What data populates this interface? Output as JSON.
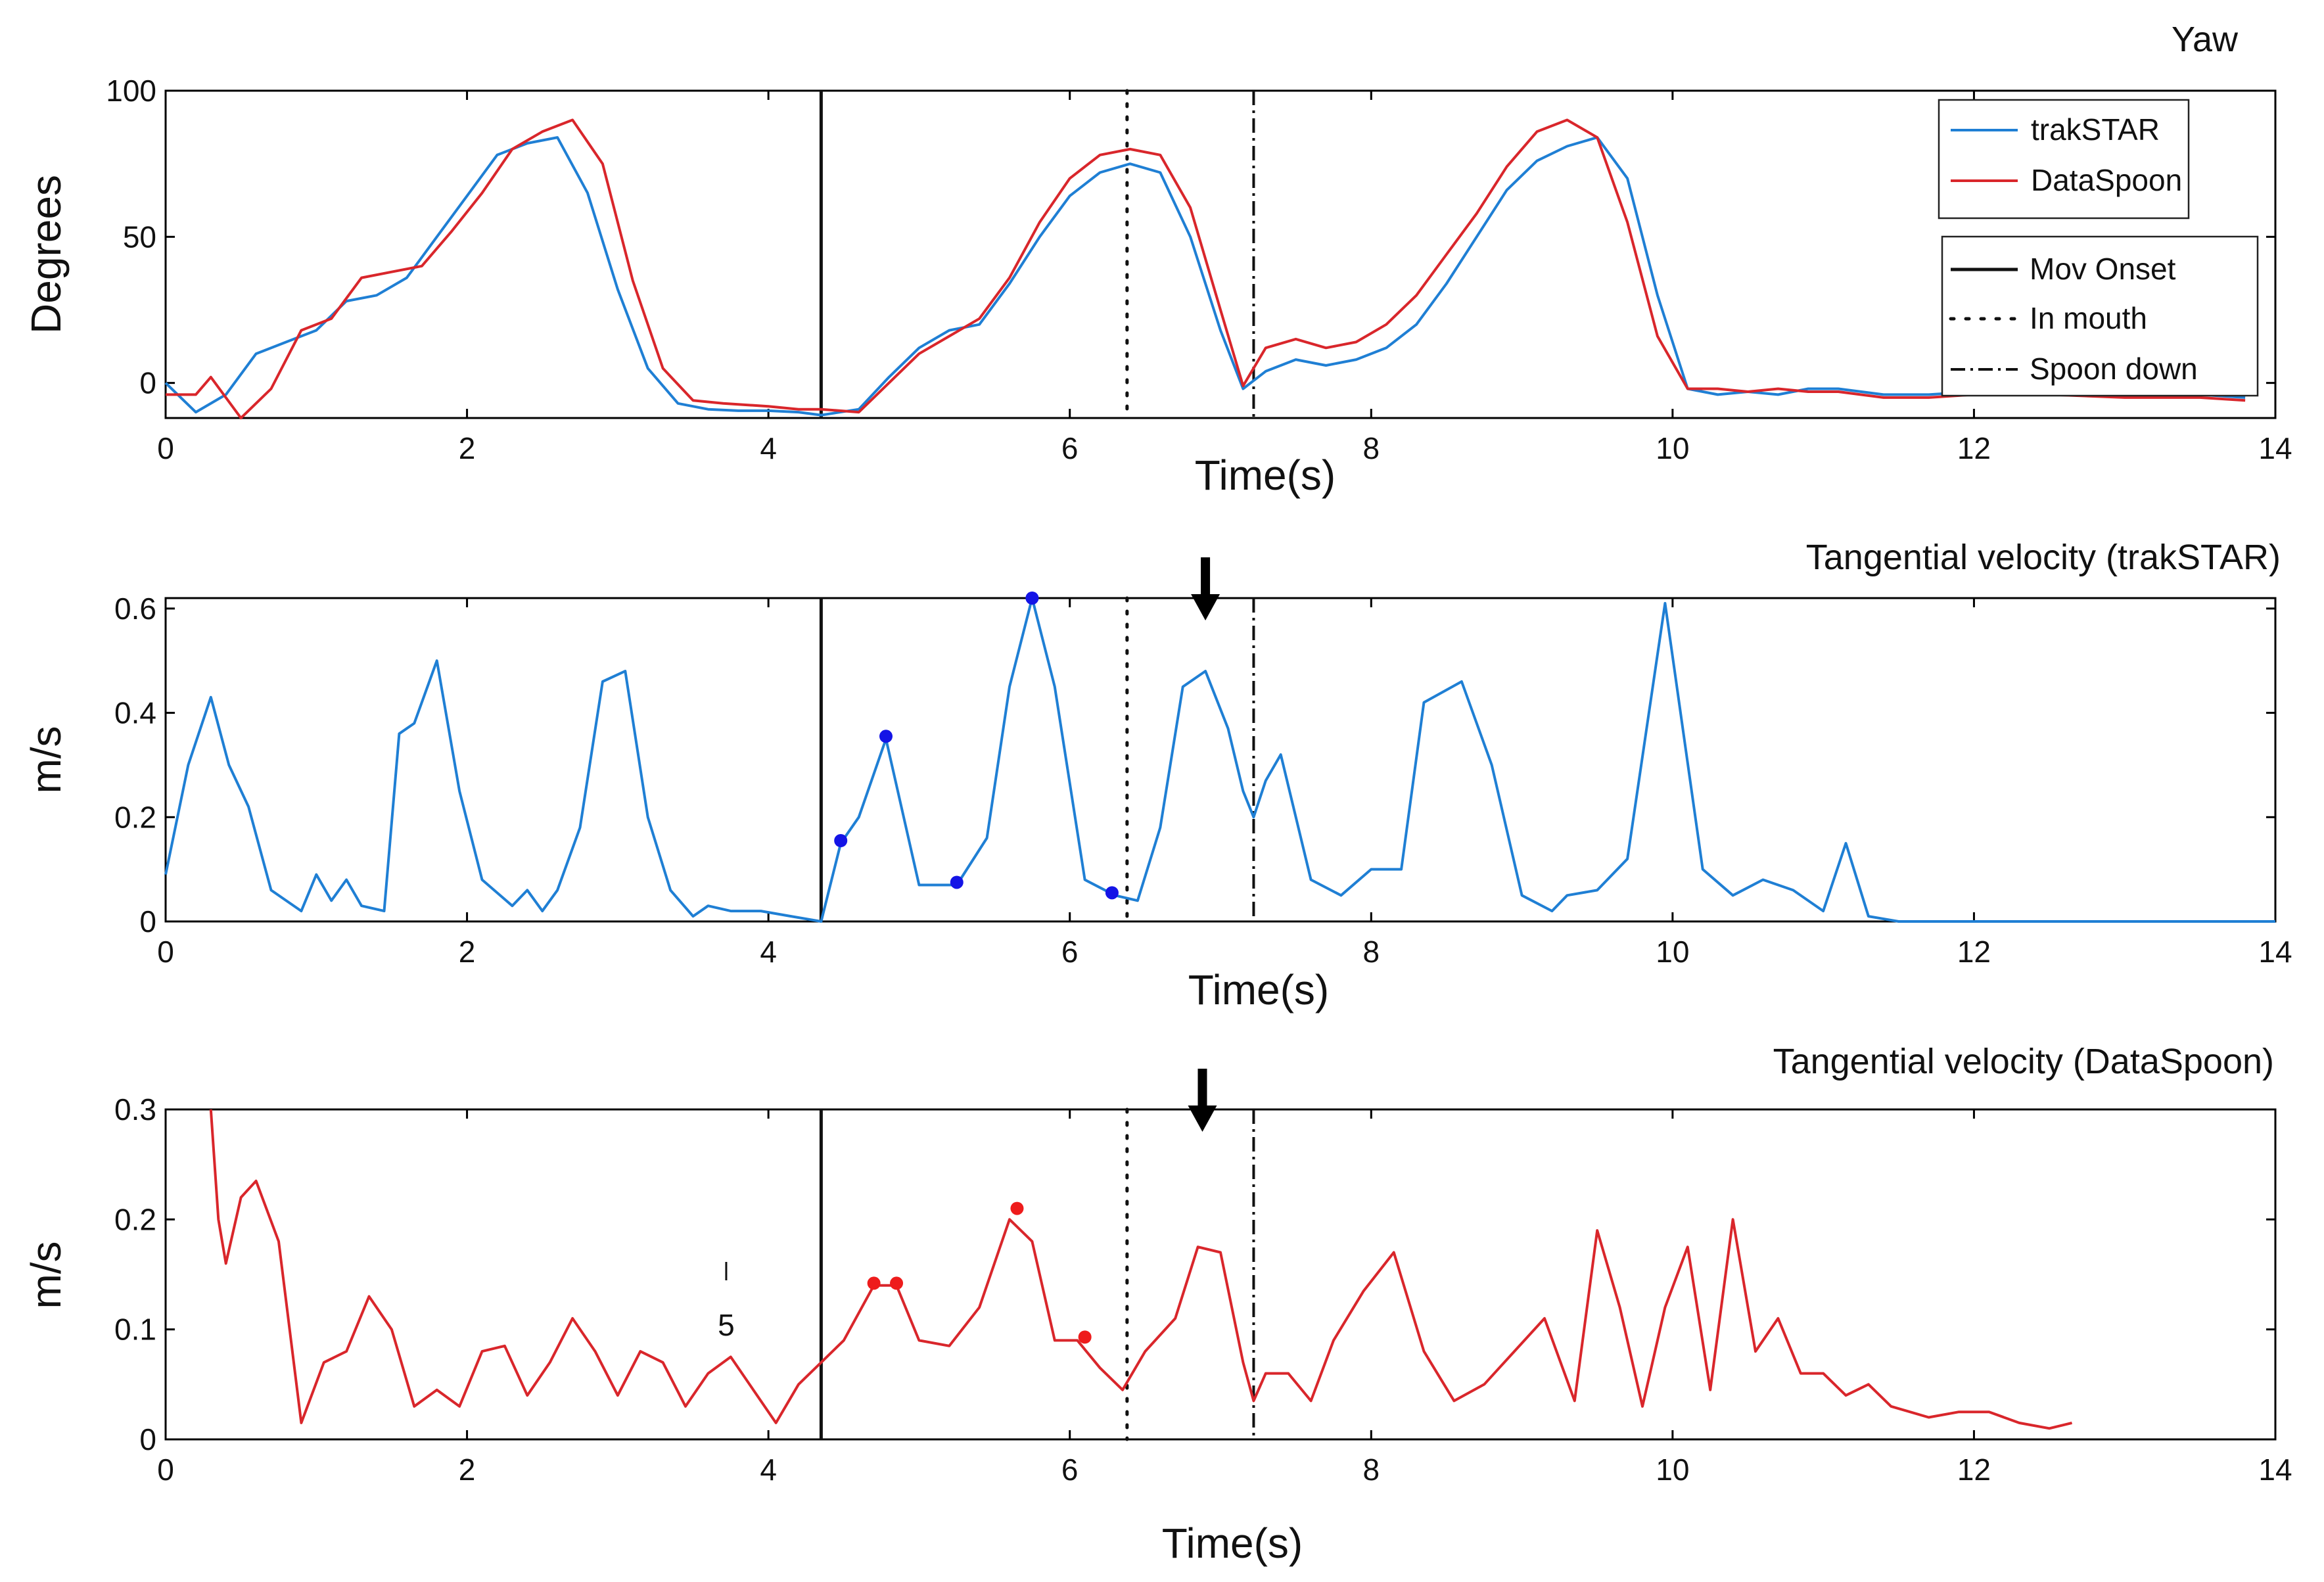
{
  "colors": {
    "trakstar": "#1f7fd4",
    "dataspoon": "#d9262b",
    "peak_blue": "#1414e6",
    "peak_red": "#ee1c1c",
    "marker": "#111111"
  },
  "legend_series": {
    "items": [
      {
        "label": "trakSTAR",
        "color": "#1f7fd4"
      },
      {
        "label": "DataSpoon",
        "color": "#d9262b"
      }
    ]
  },
  "legend_events": {
    "items": [
      {
        "label": "Mov Onset",
        "style": "solid"
      },
      {
        "label": "In mouth",
        "style": "dotted"
      },
      {
        "label": "Spoon down",
        "style": "dashdot"
      }
    ]
  },
  "events": {
    "mov_onset": 4.35,
    "in_mouth": 6.38,
    "spoon_down": 7.22
  },
  "annotation": {
    "label": "5",
    "x": 3.72
  },
  "chart_data": [
    {
      "type": "line",
      "title": "Yaw",
      "xlabel": "Time(s)",
      "ylabel": "Degrees",
      "xlim": [
        0,
        14
      ],
      "ylim": [
        -12,
        100
      ],
      "xticks": [
        0,
        2,
        4,
        6,
        8,
        10,
        12,
        14
      ],
      "yticks": [
        0,
        50,
        100
      ],
      "series": [
        {
          "name": "trakSTAR",
          "x": [
            0,
            0.2,
            0.4,
            0.6,
            0.8,
            1.0,
            1.2,
            1.4,
            1.6,
            1.8,
            2.0,
            2.2,
            2.4,
            2.6,
            2.8,
            3.0,
            3.2,
            3.4,
            3.6,
            3.8,
            4.0,
            4.2,
            4.35,
            4.6,
            4.8,
            5.0,
            5.2,
            5.4,
            5.6,
            5.8,
            6.0,
            6.2,
            6.4,
            6.6,
            6.8,
            7.0,
            7.15,
            7.3,
            7.5,
            7.7,
            7.9,
            8.1,
            8.3,
            8.5,
            8.7,
            8.9,
            9.1,
            9.3,
            9.5,
            9.7,
            9.9,
            10.1,
            10.3,
            10.5,
            10.7,
            10.9,
            11.1,
            11.4,
            11.7,
            12.0,
            12.5,
            13.0,
            13.5,
            13.8
          ],
          "values": [
            0,
            -10,
            -4,
            10,
            14,
            18,
            28,
            30,
            36,
            50,
            64,
            78,
            82,
            84,
            65,
            32,
            5,
            -7,
            -9,
            -9.5,
            -9.5,
            -10,
            -11,
            -9,
            2,
            12,
            18,
            20,
            34,
            50,
            64,
            72,
            75,
            72,
            50,
            18,
            -2,
            4,
            8,
            6,
            8,
            12,
            20,
            34,
            50,
            66,
            76,
            81,
            84,
            70,
            30,
            -2,
            -4,
            -3,
            -4,
            -2,
            -2,
            -4,
            -4,
            -3,
            -3,
            -4,
            -4,
            -5
          ]
        },
        {
          "name": "DataSpoon",
          "x": [
            0,
            0.2,
            0.3,
            0.5,
            0.7,
            0.9,
            1.1,
            1.3,
            1.5,
            1.7,
            1.9,
            2.1,
            2.3,
            2.5,
            2.7,
            2.9,
            3.1,
            3.3,
            3.5,
            3.7,
            4.0,
            4.2,
            4.35,
            4.6,
            4.8,
            5.0,
            5.2,
            5.4,
            5.6,
            5.8,
            6.0,
            6.2,
            6.4,
            6.6,
            6.8,
            7.0,
            7.15,
            7.3,
            7.5,
            7.7,
            7.9,
            8.1,
            8.3,
            8.5,
            8.7,
            8.9,
            9.1,
            9.3,
            9.5,
            9.7,
            9.9,
            10.1,
            10.3,
            10.5,
            10.7,
            10.9,
            11.1,
            11.4,
            11.7,
            12.0,
            12.5,
            13.0,
            13.5,
            13.8
          ],
          "values": [
            -4,
            -4,
            2,
            -12,
            -2,
            18,
            22,
            36,
            38,
            40,
            52,
            65,
            80,
            86,
            90,
            75,
            35,
            5,
            -6,
            -7,
            -8,
            -9,
            -9,
            -10,
            0,
            10,
            16,
            22,
            36,
            55,
            70,
            78,
            80,
            78,
            60,
            25,
            -1,
            12,
            15,
            12,
            14,
            20,
            30,
            44,
            58,
            74,
            86,
            90,
            84,
            55,
            16,
            -2,
            -2,
            -3,
            -2,
            -3,
            -3,
            -5,
            -5,
            -4,
            -4,
            -5,
            -5,
            -6
          ]
        }
      ]
    },
    {
      "type": "line",
      "title": "Tangential velocity (trakSTAR)",
      "xlabel": "Time(s)",
      "ylabel": "m/s",
      "xlim": [
        0,
        14
      ],
      "ylim": [
        0,
        0.62
      ],
      "xticks": [
        0,
        2,
        4,
        6,
        8,
        10,
        12,
        14
      ],
      "yticks": [
        0,
        0.2,
        0.4,
        0.6
      ],
      "ytick_labels": [
        "0",
        "0.2",
        "0.4",
        "0.6"
      ],
      "series": [
        {
          "name": "trakSTAR",
          "x": [
            0,
            0.15,
            0.3,
            0.42,
            0.55,
            0.7,
            0.9,
            1.0,
            1.1,
            1.2,
            1.3,
            1.45,
            1.55,
            1.65,
            1.8,
            1.95,
            2.1,
            2.3,
            2.4,
            2.5,
            2.6,
            2.75,
            2.9,
            3.05,
            3.2,
            3.35,
            3.5,
            3.6,
            3.75,
            3.95,
            4.15,
            4.35,
            4.48,
            4.6,
            4.78,
            5.0,
            5.25,
            5.45,
            5.6,
            5.75,
            5.9,
            6.1,
            6.3,
            6.45,
            6.6,
            6.75,
            6.9,
            7.05,
            7.15,
            7.22,
            7.3,
            7.4,
            7.6,
            7.8,
            8.0,
            8.2,
            8.35,
            8.6,
            8.8,
            9.0,
            9.2,
            9.3,
            9.5,
            9.7,
            9.95,
            10.2,
            10.4,
            10.6,
            10.8,
            11.0,
            11.15,
            11.3,
            11.5,
            12.0,
            13.0,
            14.0
          ],
          "values": [
            0.09,
            0.3,
            0.43,
            0.3,
            0.22,
            0.06,
            0.02,
            0.09,
            0.04,
            0.08,
            0.03,
            0.02,
            0.36,
            0.38,
            0.5,
            0.25,
            0.08,
            0.03,
            0.06,
            0.02,
            0.06,
            0.18,
            0.46,
            0.48,
            0.2,
            0.06,
            0.01,
            0.03,
            0.02,
            0.02,
            0.01,
            0.0,
            0.15,
            0.2,
            0.35,
            0.07,
            0.07,
            0.16,
            0.45,
            0.62,
            0.45,
            0.08,
            0.05,
            0.04,
            0.18,
            0.45,
            0.48,
            0.37,
            0.25,
            0.2,
            0.27,
            0.32,
            0.08,
            0.05,
            0.1,
            0.1,
            0.42,
            0.46,
            0.3,
            0.05,
            0.02,
            0.05,
            0.06,
            0.12,
            0.61,
            0.1,
            0.05,
            0.08,
            0.06,
            0.02,
            0.15,
            0.01,
            0.0,
            0.0,
            0.0,
            0.0
          ]
        }
      ],
      "peaks": {
        "x": [
          4.48,
          4.78,
          5.25,
          5.75,
          6.28
        ],
        "values": [
          0.155,
          0.355,
          0.075,
          0.62,
          0.055
        ]
      },
      "arrow_x": 6.9
    },
    {
      "type": "line",
      "title": "Tangential velocity (DataSpoon)",
      "xlabel": "Time(s)",
      "ylabel": "m/s",
      "xlim": [
        0,
        14
      ],
      "ylim": [
        0,
        0.3
      ],
      "xticks": [
        0,
        2,
        4,
        6,
        8,
        10,
        12,
        14
      ],
      "yticks": [
        0,
        0.1,
        0.2,
        0.3
      ],
      "ytick_labels": [
        "0",
        "0.1",
        "0.2",
        "0.3"
      ],
      "series": [
        {
          "name": "DataSpoon",
          "x": [
            0.3,
            0.35,
            0.4,
            0.5,
            0.6,
            0.75,
            0.9,
            1.05,
            1.2,
            1.35,
            1.5,
            1.65,
            1.8,
            1.95,
            2.1,
            2.25,
            2.4,
            2.55,
            2.7,
            2.85,
            3.0,
            3.15,
            3.3,
            3.45,
            3.6,
            3.75,
            3.9,
            4.05,
            4.2,
            4.35,
            4.5,
            4.7,
            4.85,
            5.0,
            5.2,
            5.4,
            5.6,
            5.75,
            5.9,
            6.05,
            6.2,
            6.35,
            6.5,
            6.7,
            6.85,
            7.0,
            7.15,
            7.22,
            7.3,
            7.45,
            7.6,
            7.75,
            7.95,
            8.15,
            8.35,
            8.55,
            8.75,
            8.95,
            9.15,
            9.35,
            9.5,
            9.65,
            9.8,
            9.95,
            10.1,
            10.25,
            10.4,
            10.55,
            10.7,
            10.85,
            11.0,
            11.15,
            11.3,
            11.45,
            11.7,
            11.9,
            12.1,
            12.3,
            12.5,
            12.65
          ],
          "values": [
            0.3,
            0.2,
            0.16,
            0.22,
            0.235,
            0.18,
            0.015,
            0.07,
            0.08,
            0.13,
            0.1,
            0.03,
            0.045,
            0.03,
            0.08,
            0.085,
            0.04,
            0.07,
            0.11,
            0.08,
            0.04,
            0.08,
            0.07,
            0.03,
            0.06,
            0.075,
            0.045,
            0.015,
            0.05,
            0.07,
            0.09,
            0.14,
            0.14,
            0.09,
            0.085,
            0.12,
            0.2,
            0.18,
            0.09,
            0.09,
            0.065,
            0.045,
            0.08,
            0.11,
            0.175,
            0.17,
            0.07,
            0.035,
            0.06,
            0.06,
            0.035,
            0.09,
            0.135,
            0.17,
            0.08,
            0.035,
            0.05,
            0.08,
            0.11,
            0.035,
            0.19,
            0.12,
            0.03,
            0.12,
            0.175,
            0.045,
            0.2,
            0.08,
            0.11,
            0.06,
            0.06,
            0.04,
            0.05,
            0.03,
            0.02,
            0.025,
            0.025,
            0.015,
            0.01,
            0.015
          ]
        }
      ],
      "peaks": {
        "x": [
          4.7,
          4.85,
          5.65,
          6.1
        ],
        "values": [
          0.142,
          0.142,
          0.21,
          0.093
        ]
      },
      "arrow_x": 6.88
    }
  ]
}
